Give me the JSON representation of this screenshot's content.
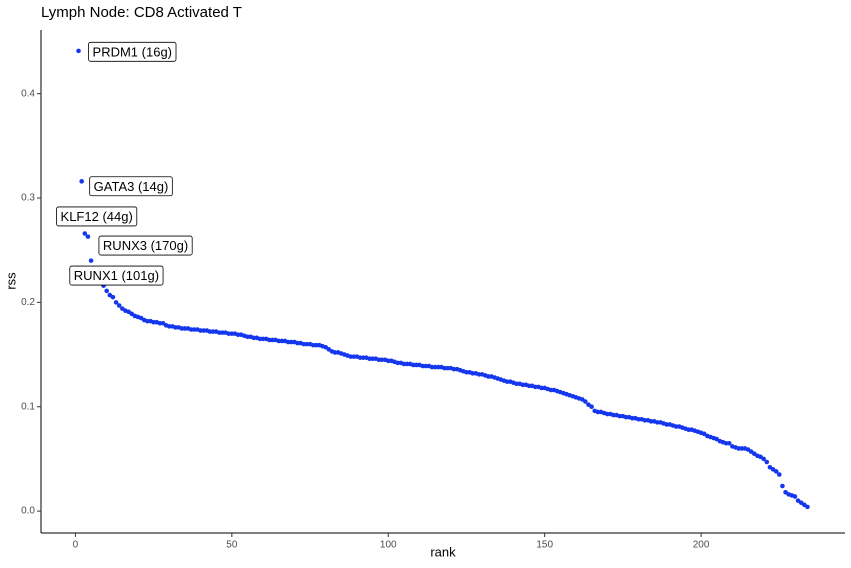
{
  "chart_data": {
    "type": "scatter",
    "title": "Lymph Node: CD8 Activated T",
    "x_label": "rank",
    "y_label": "rss",
    "color": "#1437ee",
    "xlim": [
      -11,
      246
    ],
    "ylim": [
      -0.021,
      0.461
    ],
    "xticks": [
      0,
      50,
      100,
      150,
      200
    ],
    "yticks": [
      {
        "value": 0,
        "label": "0.0"
      },
      0.1,
      0.2,
      0.3,
      0.4
    ],
    "grid": false,
    "x": [
      1,
      2,
      3,
      4,
      5,
      6,
      7,
      8,
      9,
      10,
      11,
      12,
      13,
      14,
      15,
      16,
      17,
      18,
      19,
      20,
      21,
      22,
      23,
      24,
      25,
      26,
      27,
      28,
      29,
      30,
      31,
      32,
      33,
      34,
      35,
      36,
      37,
      38,
      39,
      40,
      41,
      42,
      43,
      44,
      45,
      46,
      47,
      48,
      49,
      50,
      51,
      52,
      53,
      54,
      55,
      56,
      57,
      58,
      59,
      60,
      61,
      62,
      63,
      64,
      65,
      66,
      67,
      68,
      69,
      70,
      71,
      72,
      73,
      74,
      75,
      76,
      77,
      78,
      79,
      80,
      81,
      82,
      83,
      84,
      85,
      86,
      87,
      88,
      89,
      90,
      91,
      92,
      93,
      94,
      95,
      96,
      97,
      98,
      99,
      100,
      101,
      102,
      103,
      104,
      105,
      106,
      107,
      108,
      109,
      110,
      111,
      112,
      113,
      114,
      115,
      116,
      117,
      118,
      119,
      120,
      121,
      122,
      123,
      124,
      125,
      126,
      127,
      128,
      129,
      130,
      131,
      132,
      133,
      134,
      135,
      136,
      137,
      138,
      139,
      140,
      141,
      142,
      143,
      144,
      145,
      146,
      147,
      148,
      149,
      150,
      151,
      152,
      153,
      154,
      155,
      156,
      157,
      158,
      159,
      160,
      161,
      162,
      163,
      164,
      165,
      166,
      167,
      168,
      169,
      170,
      171,
      172,
      173,
      174,
      175,
      176,
      177,
      178,
      179,
      180,
      181,
      182,
      183,
      184,
      185,
      186,
      187,
      188,
      189,
      190,
      191,
      192,
      193,
      194,
      195,
      196,
      197,
      198,
      199,
      200,
      201,
      202,
      203,
      204,
      205,
      206,
      207,
      208,
      209,
      210,
      211,
      212,
      213,
      214,
      215,
      216,
      217,
      218,
      219,
      220,
      221,
      222,
      223,
      224,
      225,
      226,
      227,
      228,
      229,
      230,
      231,
      232,
      233,
      234
    ],
    "values": [
      0.441,
      0.316,
      0.266,
      0.263,
      0.24,
      0.232,
      0.225,
      0.22,
      0.216,
      0.211,
      0.207,
      0.205,
      0.2,
      0.197,
      0.194,
      0.192,
      0.191,
      0.189,
      0.187,
      0.186,
      0.185,
      0.183,
      0.182,
      0.182,
      0.181,
      0.181,
      0.18,
      0.18,
      0.178,
      0.177,
      0.177,
      0.176,
      0.176,
      0.175,
      0.175,
      0.175,
      0.174,
      0.174,
      0.174,
      0.173,
      0.173,
      0.173,
      0.172,
      0.172,
      0.172,
      0.171,
      0.171,
      0.171,
      0.17,
      0.17,
      0.17,
      0.169,
      0.169,
      0.168,
      0.167,
      0.167,
      0.166,
      0.166,
      0.165,
      0.165,
      0.165,
      0.164,
      0.164,
      0.164,
      0.163,
      0.163,
      0.163,
      0.162,
      0.162,
      0.162,
      0.161,
      0.161,
      0.16,
      0.16,
      0.16,
      0.159,
      0.159,
      0.159,
      0.158,
      0.157,
      0.155,
      0.153,
      0.152,
      0.152,
      0.151,
      0.15,
      0.149,
      0.148,
      0.148,
      0.148,
      0.147,
      0.147,
      0.147,
      0.146,
      0.146,
      0.146,
      0.145,
      0.145,
      0.145,
      0.144,
      0.144,
      0.143,
      0.142,
      0.142,
      0.141,
      0.141,
      0.141,
      0.14,
      0.14,
      0.14,
      0.139,
      0.139,
      0.139,
      0.138,
      0.138,
      0.138,
      0.138,
      0.137,
      0.137,
      0.137,
      0.136,
      0.136,
      0.135,
      0.134,
      0.133,
      0.133,
      0.132,
      0.132,
      0.131,
      0.131,
      0.13,
      0.129,
      0.129,
      0.128,
      0.127,
      0.126,
      0.125,
      0.124,
      0.124,
      0.123,
      0.122,
      0.122,
      0.121,
      0.121,
      0.12,
      0.12,
      0.119,
      0.119,
      0.118,
      0.118,
      0.117,
      0.116,
      0.116,
      0.115,
      0.114,
      0.113,
      0.112,
      0.111,
      0.11,
      0.109,
      0.108,
      0.107,
      0.105,
      0.102,
      0.1,
      0.096,
      0.095,
      0.095,
      0.094,
      0.093,
      0.093,
      0.092,
      0.092,
      0.091,
      0.091,
      0.09,
      0.09,
      0.089,
      0.089,
      0.088,
      0.088,
      0.087,
      0.087,
      0.086,
      0.086,
      0.085,
      0.085,
      0.084,
      0.083,
      0.083,
      0.082,
      0.081,
      0.081,
      0.08,
      0.079,
      0.078,
      0.078,
      0.077,
      0.076,
      0.075,
      0.074,
      0.072,
      0.071,
      0.07,
      0.069,
      0.067,
      0.066,
      0.065,
      0.065,
      0.062,
      0.061,
      0.06,
      0.06,
      0.06,
      0.059,
      0.057,
      0.055,
      0.053,
      0.052,
      0.05,
      0.047,
      0.042,
      0.04,
      0.038,
      0.035,
      0.024,
      0.018,
      0.016,
      0.015,
      0.014,
      0.01,
      0.008,
      0.006,
      0.004
    ],
    "point_labels": [
      "PRDM1 (16g)",
      "GATA3 (14g)",
      "KLF12 (44g)",
      "RUNX3 (170g)",
      "RUNX1 (101g)",
      null,
      null,
      null,
      null,
      null,
      null,
      null,
      null,
      null,
      null,
      null,
      null,
      null,
      null,
      null,
      null,
      null,
      null,
      null,
      null,
      null,
      null,
      null,
      null,
      null,
      null,
      null,
      null,
      null,
      null,
      null,
      null,
      null,
      null,
      null,
      null,
      null,
      null,
      null,
      null,
      null,
      null,
      null,
      null,
      null,
      null,
      null,
      null,
      null,
      null,
      null,
      null,
      null,
      null,
      null,
      null,
      null,
      null,
      null,
      null,
      null,
      null,
      null,
      null,
      null,
      null,
      null,
      null,
      null,
      null,
      null,
      null,
      null,
      null,
      null,
      null,
      null,
      null,
      null,
      null,
      null,
      null,
      null,
      null,
      null,
      null,
      null,
      null,
      null,
      null,
      null,
      null,
      null,
      null,
      null,
      null,
      null,
      null,
      null,
      null,
      null,
      null,
      null,
      null,
      null,
      null,
      null,
      null,
      null,
      null,
      null,
      null,
      null,
      null,
      null,
      null,
      null,
      null,
      null,
      null,
      null,
      null,
      null,
      null,
      null,
      null,
      null,
      null,
      null,
      null,
      null,
      null,
      null,
      null,
      null,
      null,
      null,
      null,
      null,
      null,
      null,
      null,
      null,
      null,
      null,
      null,
      null,
      null,
      null,
      null,
      null,
      null,
      null,
      null,
      null,
      null,
      null,
      null,
      null,
      null,
      null,
      null,
      null,
      null,
      null,
      null,
      null,
      null,
      null,
      null,
      null,
      null,
      null,
      null,
      null,
      null,
      null,
      null,
      null,
      null,
      null,
      null,
      null,
      null,
      null,
      null,
      null,
      null,
      null,
      null,
      null,
      null,
      null,
      null,
      null,
      null,
      null,
      null,
      null,
      null,
      null,
      null,
      null,
      null,
      null,
      null,
      null,
      null,
      null,
      null,
      null,
      null,
      null,
      null,
      null,
      null,
      null,
      null,
      null,
      null,
      null,
      null,
      null,
      null,
      null,
      null,
      null,
      null,
      null
    ]
  }
}
